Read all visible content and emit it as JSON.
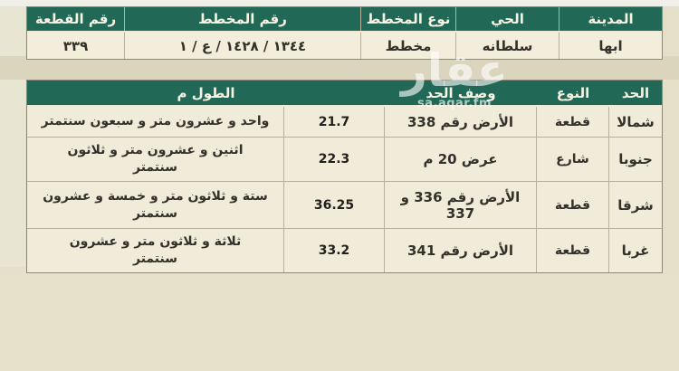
{
  "colors": {
    "header_green": "#226856",
    "cell_beige": "#f0ecd9",
    "page_beige": "#e4dfc9",
    "watermark_white": "#ffffff"
  },
  "watermark": {
    "logo": "عقار",
    "caption": "sa.aqar.fm"
  },
  "top_table": {
    "headers": [
      "المدينة",
      "الحي",
      "نوع المخطط",
      "رقم المخطط",
      "رقم القطعة"
    ],
    "values": [
      "ابها",
      "سلطانه",
      "مخطط",
      "١٣٤٤ / ١٤٢٨ / ع / ١",
      "٣٣٩"
    ]
  },
  "boundary_table": {
    "headers": [
      "الحد",
      "النوع",
      "وصف الحد",
      "الطول م"
    ],
    "rows": [
      {
        "side": "شمالا",
        "type": "قطعة",
        "desc": "الأرض رقم 338",
        "length_num": "21.7",
        "length_text": "واحد و عشرون متر و سبعون سنتمتر"
      },
      {
        "side": "جنوبا",
        "type": "شارع",
        "desc": "عرض 20 م",
        "length_num": "22.3",
        "length_text": "اثنين و عشرون متر و ثلاثون\nسنتمتر"
      },
      {
        "side": "شرقا",
        "type": "قطعة",
        "desc": "الأرض رقم 336 و 337",
        "length_num": "36.25",
        "length_text": "ستة و ثلاثون متر و خمسة و عشرون\nسنتمتر"
      },
      {
        "side": "غربا",
        "type": "قطعة",
        "desc": "الأرض رقم 341",
        "length_num": "33.2",
        "length_text": "ثلاثة و ثلاثون متر و عشرون\nسنتمتر"
      }
    ]
  }
}
